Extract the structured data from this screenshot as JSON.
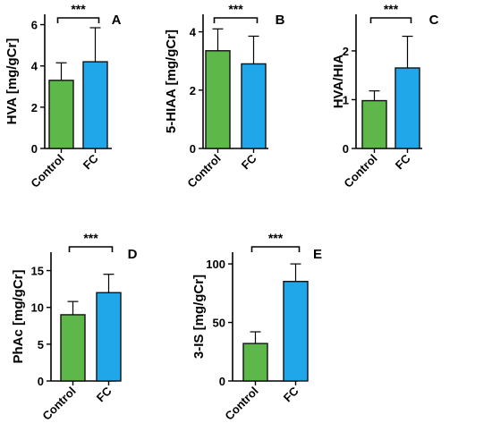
{
  "colors": {
    "control": "#5DB849",
    "fc": "#1FA7EA",
    "axis": "#000000",
    "bar_stroke": "#111111"
  },
  "chart_data": [
    {
      "panel": "A",
      "type": "bar",
      "categories": [
        "Control",
        "FC"
      ],
      "values": [
        3.3,
        4.2
      ],
      "errors": [
        0.85,
        1.65
      ],
      "ylabel": "HVA [mg/gCr]",
      "ylim": [
        0,
        6.5
      ],
      "yticks": [
        0,
        2,
        4,
        6
      ],
      "significance": "***"
    },
    {
      "panel": "B",
      "type": "bar",
      "categories": [
        "Control",
        "FC"
      ],
      "values": [
        3.35,
        2.9
      ],
      "errors": [
        0.75,
        0.95
      ],
      "ylabel": "5-HIAA [mg/gCr]",
      "ylim": [
        0,
        4.6
      ],
      "yticks": [
        0,
        2,
        4
      ],
      "significance": "***"
    },
    {
      "panel": "C",
      "type": "bar",
      "categories": [
        "Control",
        "FC"
      ],
      "values": [
        0.98,
        1.65
      ],
      "errors": [
        0.2,
        0.65
      ],
      "ylabel": "HVA/HIA",
      "ylim": [
        0,
        2.75
      ],
      "yticks": [
        0,
        1,
        2
      ],
      "significance": "***"
    },
    {
      "panel": "D",
      "type": "bar",
      "categories": [
        "Control",
        "FC"
      ],
      "values": [
        9.0,
        12.0
      ],
      "errors": [
        1.8,
        2.5
      ],
      "ylabel": "PhAc [mg/gCr]",
      "ylim": [
        0,
        17.5
      ],
      "yticks": [
        0,
        5,
        10,
        15
      ],
      "significance": "***"
    },
    {
      "panel": "E",
      "type": "bar",
      "categories": [
        "Control",
        "FC"
      ],
      "values": [
        32,
        85
      ],
      "errors": [
        10,
        15
      ],
      "ylabel": "3-IS [mg/gCr]",
      "ylim": [
        0,
        110
      ],
      "yticks": [
        0,
        50,
        100
      ],
      "significance": "***"
    }
  ]
}
